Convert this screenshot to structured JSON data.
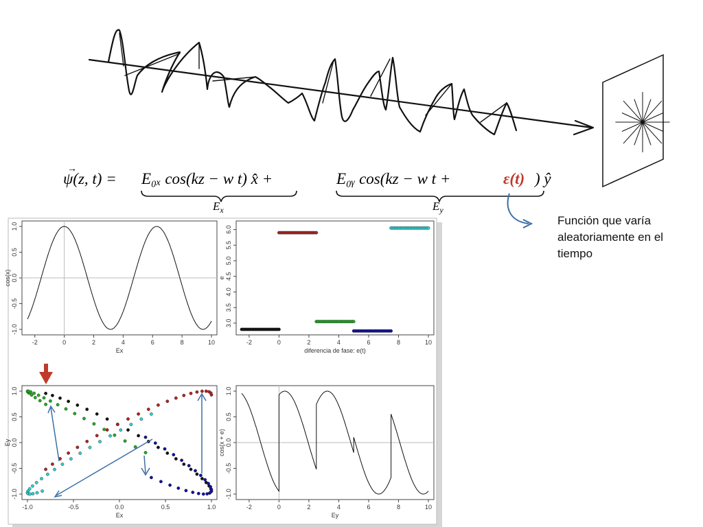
{
  "equation": {
    "lhs": "ψ(z, t) =",
    "term_x": "E₀ₓ cos(kz − w t) x̂ +",
    "term_y_a": "E₀ᵧ cos(kz − w t +",
    "term_y_eps": "ε(t)",
    "term_y_b": ") ŷ",
    "brace_x_label": "E",
    "brace_x_sub": "x",
    "brace_y_label": "E",
    "brace_y_sub": "y"
  },
  "note": {
    "text": "Función que varía aleatoriamente en el tiempo"
  },
  "colors": {
    "accent_red": "#c0392b",
    "arrow_blue": "#3a6ea5",
    "black": "#111111",
    "red": "#b22222",
    "green": "#22aa22",
    "blue": "#1010a0",
    "cyan": "#33cccc"
  },
  "chart_data": [
    {
      "type": "line",
      "function": "cos(x)",
      "xlim": [
        -2.5,
        10
      ],
      "ylim": [
        -1,
        1
      ],
      "xticks": [
        "-2",
        "0",
        "2",
        "4",
        "6",
        "8",
        "10"
      ],
      "yticks": [
        "-1.0",
        "-0.5",
        "0.0",
        "0.5",
        "1.0"
      ],
      "xlabel": "Ex",
      "ylabel": "cos(x)"
    },
    {
      "type": "scatter",
      "xlim": [
        -2.5,
        10
      ],
      "ylim": [
        2.8,
        6.1
      ],
      "xticks": [
        "-2",
        "0",
        "2",
        "4",
        "6",
        "8",
        "10"
      ],
      "yticks": [
        "3.0",
        "3.5",
        "4.0",
        "4.5",
        "5.0",
        "5.5",
        "6.0"
      ],
      "xlabel": "diferencia de fase: e(t)",
      "ylabel": "e",
      "segments": [
        {
          "x": [
            -2.5,
            0
          ],
          "y": 2.8,
          "color": "#111111"
        },
        {
          "x": [
            0,
            2.5
          ],
          "y": 5.9,
          "color": "#b22222"
        },
        {
          "x": [
            2.5,
            5
          ],
          "y": 3.05,
          "color": "#22aa22"
        },
        {
          "x": [
            5,
            7.5
          ],
          "y": 2.75,
          "color": "#1010a0"
        },
        {
          "x": [
            7.5,
            10
          ],
          "y": 6.05,
          "color": "#33cccc"
        }
      ]
    },
    {
      "type": "scatter",
      "xlim": [
        -1,
        1
      ],
      "ylim": [
        -1,
        1
      ],
      "xticks": [
        "-1.0",
        "-0.5",
        "0.0",
        "0.5",
        "1.0"
      ],
      "yticks": [
        "-1.0",
        "-0.5",
        "0.0",
        "0.5",
        "1.0"
      ],
      "xlabel": "Ex",
      "ylabel": "Ey",
      "description": "Ey = cos(x + e) vs Ex = cos(x) colored by phase segment"
    },
    {
      "type": "line",
      "function": "cos(x + e)",
      "xlim": [
        -2.5,
        10
      ],
      "ylim": [
        -1,
        1
      ],
      "xticks": [
        "-2",
        "0",
        "2",
        "4",
        "6",
        "8",
        "10"
      ],
      "yticks": [
        "-1.0",
        "-0.5",
        "0.0",
        "0.5",
        "1.0"
      ],
      "xlabel": "Ey",
      "ylabel": "cos(x + e)"
    }
  ]
}
